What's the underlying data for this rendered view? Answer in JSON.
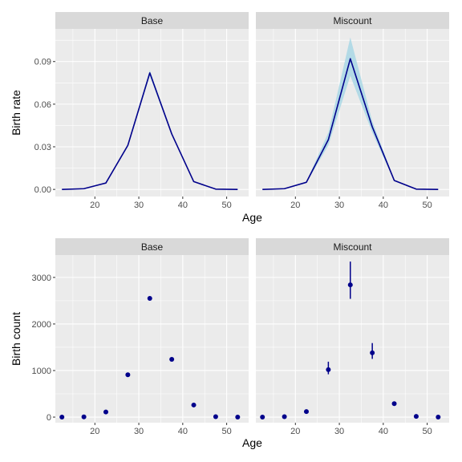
{
  "chart_data": [
    {
      "type": "line",
      "ylabel": "Birth rate",
      "xlabel": "Age",
      "xlim": [
        11,
        55
      ],
      "ylim": [
        -0.005,
        0.113
      ],
      "x_ticks": [
        20,
        30,
        40,
        50
      ],
      "y_ticks": [
        0.0,
        0.03,
        0.06,
        0.09
      ],
      "y_tick_labels": [
        "0.00",
        "0.03",
        "0.06",
        "0.09"
      ],
      "line_color": "#00008b",
      "ribbon_color": "#add8e6",
      "panels": [
        {
          "strip": "Base",
          "x": [
            12.5,
            17.5,
            22.5,
            27.5,
            32.5,
            37.5,
            42.5,
            47.5,
            52.5
          ],
          "y": [
            0.0,
            0.0005,
            0.0045,
            0.031,
            0.082,
            0.039,
            0.0055,
            0.0002,
            0.0
          ],
          "ribbon_lower": [
            0.0,
            0.0004,
            0.0042,
            0.03,
            0.08,
            0.038,
            0.0052,
            0.0001,
            0.0
          ],
          "ribbon_upper": [
            0.0,
            0.0006,
            0.0048,
            0.032,
            0.084,
            0.04,
            0.0058,
            0.0003,
            0.0
          ]
        },
        {
          "strip": "Miscount",
          "x": [
            12.5,
            17.5,
            22.5,
            27.5,
            32.5,
            37.5,
            42.5,
            47.5,
            52.5
          ],
          "y": [
            0.0,
            0.0005,
            0.005,
            0.035,
            0.092,
            0.044,
            0.0063,
            0.0002,
            0.0
          ],
          "ribbon_lower": [
            0.0,
            0.0004,
            0.0045,
            0.031,
            0.08,
            0.04,
            0.0058,
            0.0001,
            0.0
          ],
          "ribbon_upper": [
            0.0,
            0.0007,
            0.0055,
            0.04,
            0.107,
            0.048,
            0.0068,
            0.0003,
            0.0
          ]
        }
      ]
    },
    {
      "type": "scatter",
      "ylabel": "Birth count",
      "xlabel": "Age",
      "xlim": [
        11,
        55
      ],
      "ylim": [
        -120,
        3480
      ],
      "x_ticks": [
        20,
        30,
        40,
        50
      ],
      "y_ticks": [
        0,
        1000,
        2000,
        3000
      ],
      "y_tick_labels": [
        "0",
        "1000",
        "2000",
        "3000"
      ],
      "point_color": "#00008b",
      "panels": [
        {
          "strip": "Base",
          "x": [
            12.5,
            17.5,
            22.5,
            27.5,
            32.5,
            37.5,
            42.5,
            47.5,
            52.5
          ],
          "y": [
            0,
            5,
            110,
            910,
            2550,
            1240,
            260,
            10,
            0
          ],
          "err_lower": null,
          "err_upper": null
        },
        {
          "strip": "Miscount",
          "x": [
            12.5,
            17.5,
            22.5,
            27.5,
            32.5,
            37.5,
            42.5,
            47.5,
            52.5
          ],
          "y": [
            0,
            10,
            120,
            1020,
            2840,
            1380,
            290,
            15,
            0
          ],
          "err_lower": [
            0,
            10,
            120,
            920,
            2540,
            1250,
            290,
            15,
            0
          ],
          "err_upper": [
            0,
            10,
            120,
            1190,
            3340,
            1590,
            290,
            15,
            0
          ]
        }
      ]
    }
  ]
}
